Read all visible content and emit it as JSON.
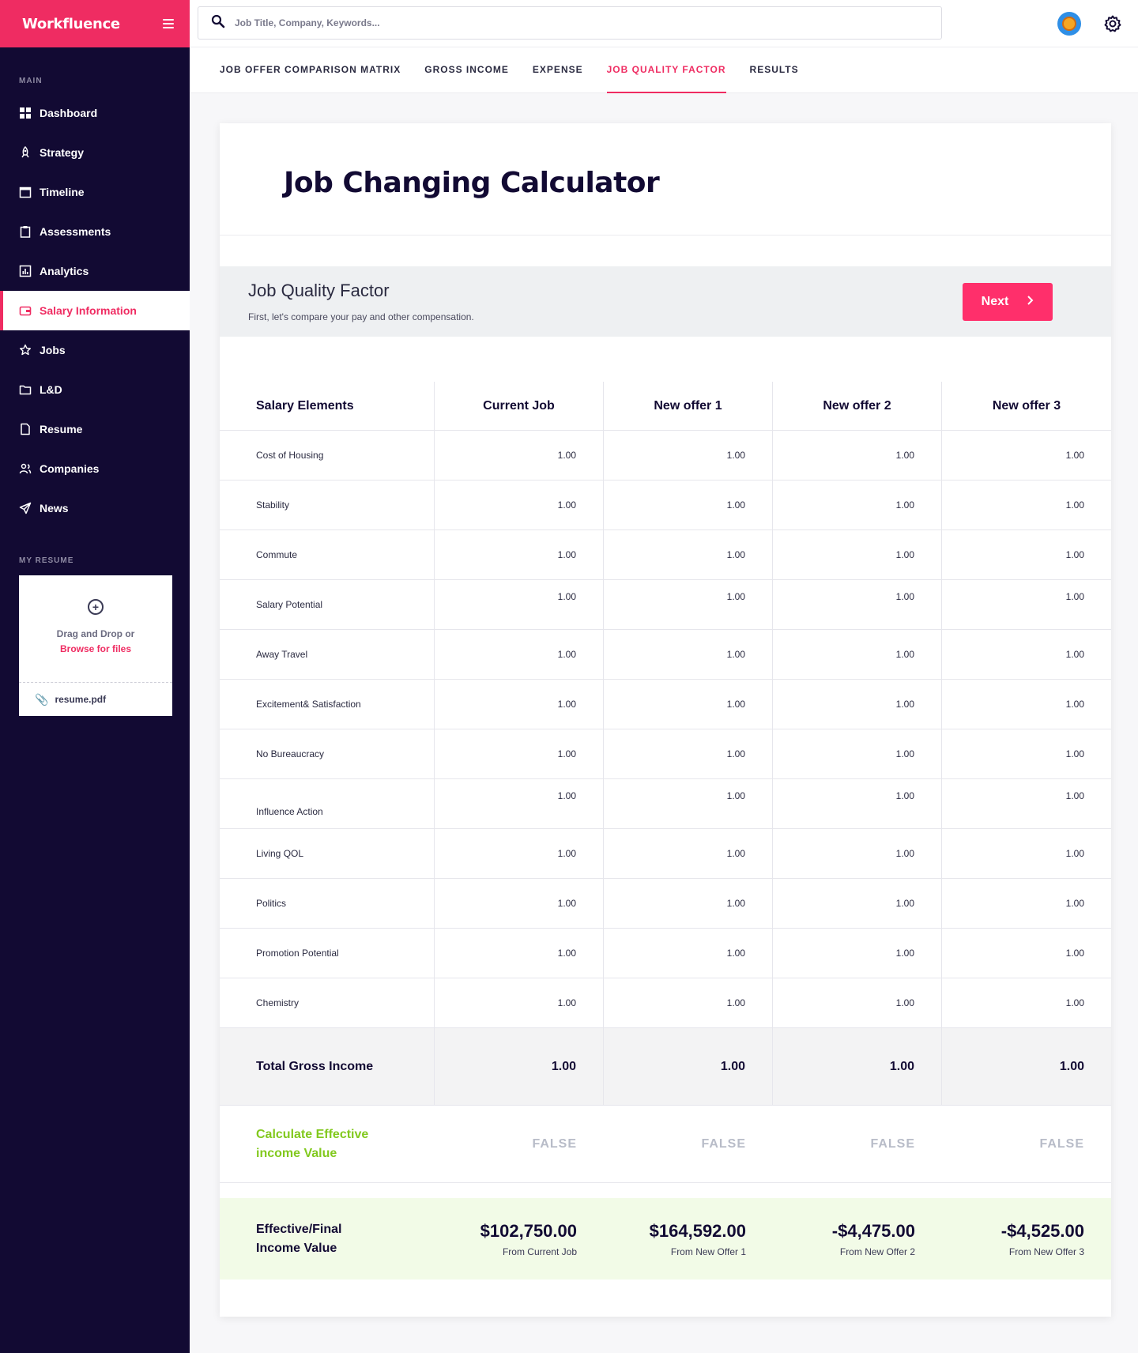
{
  "brand": {
    "name": "Workfluence"
  },
  "sidebar": {
    "main_label": "MAIN",
    "resume_label": "MY RESUME",
    "items": [
      {
        "label": "Dashboard",
        "icon": "grid-icon",
        "active": false
      },
      {
        "label": "Strategy",
        "icon": "rocket-icon",
        "active": false
      },
      {
        "label": "Timeline",
        "icon": "calendar-icon",
        "active": false
      },
      {
        "label": "Assessments",
        "icon": "clipboard-icon",
        "active": false
      },
      {
        "label": "Analytics",
        "icon": "bar-chart-icon",
        "active": false
      },
      {
        "label": "Salary Information",
        "icon": "wallet-icon",
        "active": true
      },
      {
        "label": "Jobs",
        "icon": "star-icon",
        "active": false
      },
      {
        "label": "L&D",
        "icon": "folder-icon",
        "active": false
      },
      {
        "label": "Resume",
        "icon": "document-icon",
        "active": false
      },
      {
        "label": "Companies",
        "icon": "users-icon",
        "active": false
      },
      {
        "label": "News",
        "icon": "send-icon",
        "active": false
      }
    ],
    "upload": {
      "drop_text": "Drag and Drop or",
      "browse_text": "Browse for files",
      "file_name": "resume.pdf"
    }
  },
  "search": {
    "placeholder": "Job Title, Company, Keywords..."
  },
  "tabs": [
    {
      "label": "JOB OFFER COMPARISON MATRIX",
      "active": false
    },
    {
      "label": "GROSS INCOME",
      "active": false
    },
    {
      "label": "EXPENSE",
      "active": false
    },
    {
      "label": "JOB QUALITY FACTOR",
      "active": true
    },
    {
      "label": "RESULTS",
      "active": false
    }
  ],
  "page": {
    "title": "Job Changing Calculator",
    "section_title": "Job Quality Factor",
    "section_subtitle": "First, let's compare your pay and other compensation.",
    "next_label": "Next"
  },
  "table": {
    "headers": [
      "Salary Elements",
      "Current Job",
      "New offer 1",
      "New offer 2",
      "New offer 3"
    ],
    "rows": [
      {
        "label": "Cost of Housing",
        "values": [
          "1.00",
          "1.00",
          "1.00",
          "1.00"
        ]
      },
      {
        "label": "Stability",
        "values": [
          "1.00",
          "1.00",
          "1.00",
          "1.00"
        ]
      },
      {
        "label": "Commute",
        "values": [
          "1.00",
          "1.00",
          "1.00",
          "1.00"
        ]
      },
      {
        "label": "Salary Potential",
        "values": [
          "1.00",
          "1.00",
          "1.00",
          "1.00"
        ]
      },
      {
        "label": "Away Travel",
        "values": [
          "1.00",
          "1.00",
          "1.00",
          "1.00"
        ]
      },
      {
        "label": "Excitement& Satisfaction",
        "values": [
          "1.00",
          "1.00",
          "1.00",
          "1.00"
        ]
      },
      {
        "label": "No Bureaucracy",
        "values": [
          "1.00",
          "1.00",
          "1.00",
          "1.00"
        ]
      },
      {
        "label": "Influence Action",
        "values": [
          "1.00",
          "1.00",
          "1.00",
          "1.00"
        ]
      },
      {
        "label": "Living QOL",
        "values": [
          "1.00",
          "1.00",
          "1.00",
          "1.00"
        ]
      },
      {
        "label": "Politics",
        "values": [
          "1.00",
          "1.00",
          "1.00",
          "1.00"
        ]
      },
      {
        "label": "Promotion Potential",
        "values": [
          "1.00",
          "1.00",
          "1.00",
          "1.00"
        ]
      },
      {
        "label": "Chemistry",
        "values": [
          "1.00",
          "1.00",
          "1.00",
          "1.00"
        ]
      }
    ],
    "total": {
      "label": "Total Gross Income",
      "values": [
        "1.00",
        "1.00",
        "1.00",
        "1.00"
      ]
    },
    "calc": {
      "label_line1": "Calculate Effective",
      "label_line2": "income Value",
      "values": [
        "FALSE",
        "FALSE",
        "FALSE",
        "FALSE"
      ]
    },
    "final": {
      "label_line1": "Effective/Final",
      "label_line2": "Income Value",
      "items": [
        {
          "amount": "$102,750.00",
          "from": "From Current Job"
        },
        {
          "amount": "$164,592.00",
          "from": "From New Offer 1"
        },
        {
          "amount": "-$4,475.00",
          "from": "From New Offer 2"
        },
        {
          "amount": "-$4,525.00",
          "from": "From New Offer 3"
        }
      ]
    }
  },
  "colors": {
    "brand": "#ef2c62",
    "sidebar": "#120a33",
    "accent_green": "#82c91e"
  }
}
